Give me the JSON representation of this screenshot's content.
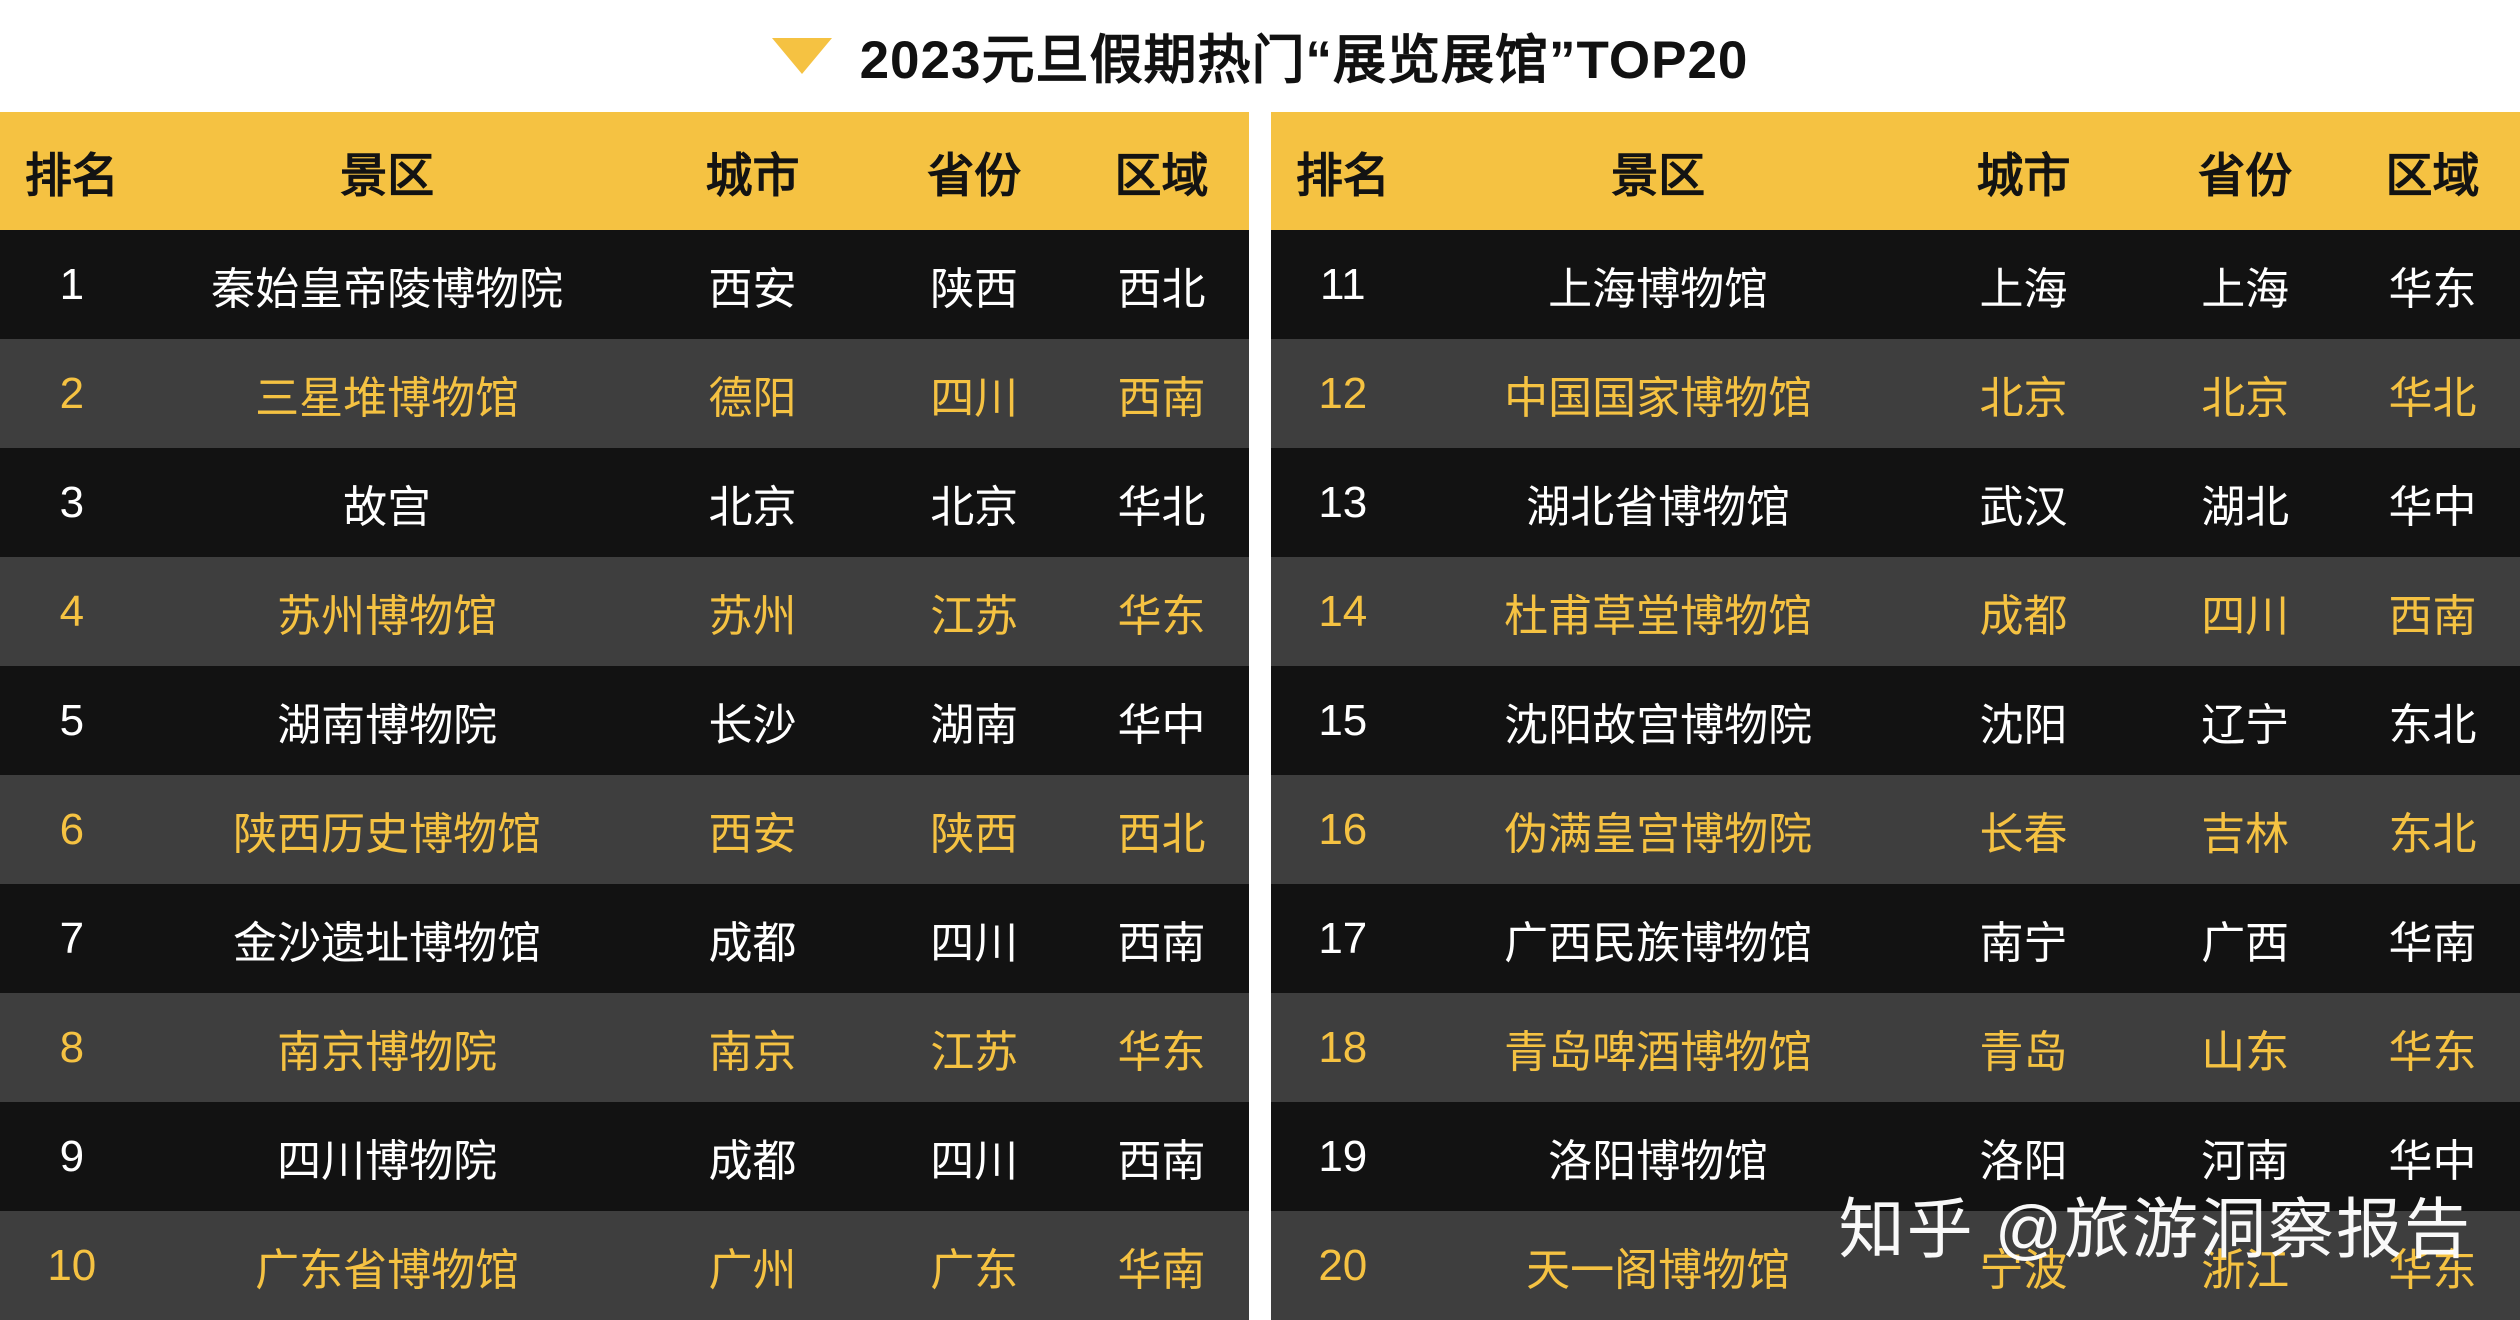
{
  "title": "2023元旦假期热门“展览展馆”TOP20",
  "title_marker_icon": "triangle-down",
  "watermark": "知乎 @旅游洞察报告",
  "colors": {
    "accent_yellow": "#F5C242",
    "row_black": "#121212",
    "row_gray": "#3E3E3E",
    "text_white": "#FFFFFF",
    "header_text": "#131313"
  },
  "chart_data": {
    "type": "table",
    "title": "2023元旦假期热门“展览展馆”TOP20",
    "columns": [
      "排名",
      "景区",
      "城市",
      "省份",
      "区域"
    ],
    "rows": [
      [
        "1",
        "秦始皇帝陵博物院",
        "西安",
        "陕西",
        "西北"
      ],
      [
        "2",
        "三星堆博物馆",
        "德阳",
        "四川",
        "西南"
      ],
      [
        "3",
        "故宫",
        "北京",
        "北京",
        "华北"
      ],
      [
        "4",
        "苏州博物馆",
        "苏州",
        "江苏",
        "华东"
      ],
      [
        "5",
        "湖南博物院",
        "长沙",
        "湖南",
        "华中"
      ],
      [
        "6",
        "陕西历史博物馆",
        "西安",
        "陕西",
        "西北"
      ],
      [
        "7",
        "金沙遗址博物馆",
        "成都",
        "四川",
        "西南"
      ],
      [
        "8",
        "南京博物院",
        "南京",
        "江苏",
        "华东"
      ],
      [
        "9",
        "四川博物院",
        "成都",
        "四川",
        "西南"
      ],
      [
        "10",
        "广东省博物馆",
        "广州",
        "广东",
        "华南"
      ],
      [
        "11",
        "上海博物馆",
        "上海",
        "上海",
        "华东"
      ],
      [
        "12",
        "中国国家博物馆",
        "北京",
        "北京",
        "华北"
      ],
      [
        "13",
        "湖北省博物馆",
        "武汉",
        "湖北",
        "华中"
      ],
      [
        "14",
        "杜甫草堂博物馆",
        "成都",
        "四川",
        "西南"
      ],
      [
        "15",
        "沈阳故宫博物院",
        "沈阳",
        "辽宁",
        "东北"
      ],
      [
        "16",
        "伪满皇宫博物院",
        "长春",
        "吉林",
        "东北"
      ],
      [
        "17",
        "广西民族博物馆",
        "南宁",
        "广西",
        "华南"
      ],
      [
        "18",
        "青岛啤酒博物馆",
        "青岛",
        "山东",
        "华东"
      ],
      [
        "19",
        "洛阳博物馆",
        "洛阳",
        "河南",
        "华中"
      ],
      [
        "20",
        "天一阁博物馆",
        "宁波",
        "浙江",
        "华东"
      ]
    ],
    "layout": {
      "split": "two side-by-side tables: ranks 1-10 left, ranks 11-20 right",
      "row_style": "odd ranks: black bg / white text; even ranks: dark-gray bg / yellow text",
      "grid": false
    }
  }
}
